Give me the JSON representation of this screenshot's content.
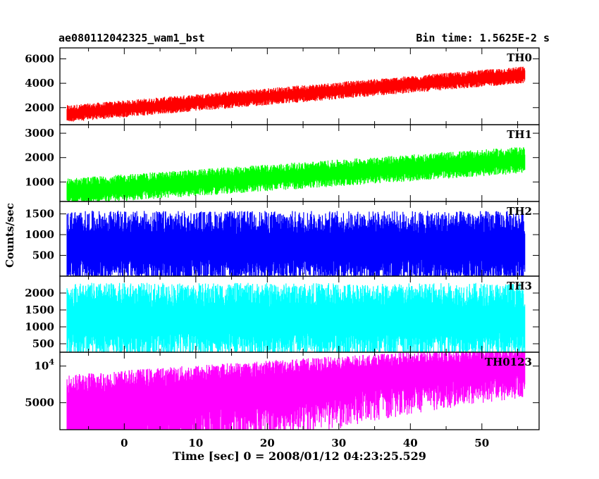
{
  "header": {
    "left_title": "ae080112042325_wam1_bst",
    "right_title": "Bin time: 1.5625E-2 s"
  },
  "axes": {
    "ylabel": "Counts/sec",
    "xlabel": "Time [sec] 0 = 2008/01/12 04:23:25.529"
  },
  "chart_data": [
    {
      "type": "line",
      "series": [
        {
          "name": "TH0",
          "color": "#ff0000",
          "start": [
            -8,
            1500
          ],
          "end": [
            56,
            4700
          ],
          "noise_min": 600,
          "noise_max": 2000
        }
      ],
      "xlim": [
        -9,
        58
      ],
      "ylim": [
        600,
        6900
      ],
      "ytick_values": [
        2000,
        4000,
        6000
      ],
      "ytick_labels": [
        "2000",
        "4000",
        "6000"
      ]
    },
    {
      "type": "line",
      "series": [
        {
          "name": "TH1",
          "color": "#00ff00",
          "start": [
            -8,
            600
          ],
          "end": [
            56,
            1900
          ],
          "noise_min": 250,
          "noise_max": 1350
        }
      ],
      "xlim": [
        -9,
        58
      ],
      "ylim": [
        200,
        3350
      ],
      "ytick_values": [
        1000,
        2000,
        3000
      ],
      "ytick_labels": [
        "1000",
        "2000",
        "3000"
      ]
    },
    {
      "type": "line",
      "series": [
        {
          "name": "TH2",
          "color": "#0000ff",
          "start": [
            -8,
            700
          ],
          "end": [
            56,
            700
          ],
          "noise_min": 50,
          "noise_max": 1800
        }
      ],
      "xlim": [
        -9,
        58
      ],
      "ylim": [
        0,
        1800
      ],
      "ytick_values": [
        500,
        1000,
        1500
      ],
      "ytick_labels": [
        "500",
        "1000",
        "1500"
      ]
    },
    {
      "type": "line",
      "series": [
        {
          "name": "TH3",
          "color": "#00ffff",
          "start": [
            -8,
            1200
          ],
          "end": [
            56,
            1200
          ],
          "noise_min": 250,
          "noise_max": 2450
        }
      ],
      "xlim": [
        -9,
        58
      ],
      "ylim": [
        250,
        2500
      ],
      "ytick_values": [
        500,
        1000,
        1500,
        2000
      ],
      "ytick_labels": [
        "500",
        "1000",
        "1500",
        "2000"
      ]
    },
    {
      "type": "line",
      "series": [
        {
          "name": "TH0123",
          "color": "#ff00ff",
          "start": [
            -8,
            4000
          ],
          "end": [
            56,
            10000
          ],
          "noise_min": 3000,
          "noise_max": 12000
        }
      ],
      "xlim": [
        -9,
        58
      ],
      "ylim": [
        3000,
        13000
      ],
      "yscale": "log",
      "ytick_values": [
        5000,
        10000
      ],
      "ytick_labels": [
        "5000",
        "10^4"
      ]
    }
  ],
  "x_axis": {
    "tick_values": [
      0,
      10,
      20,
      30,
      40,
      50
    ],
    "tick_labels": [
      "0",
      "10",
      "20",
      "30",
      "40",
      "50"
    ]
  }
}
